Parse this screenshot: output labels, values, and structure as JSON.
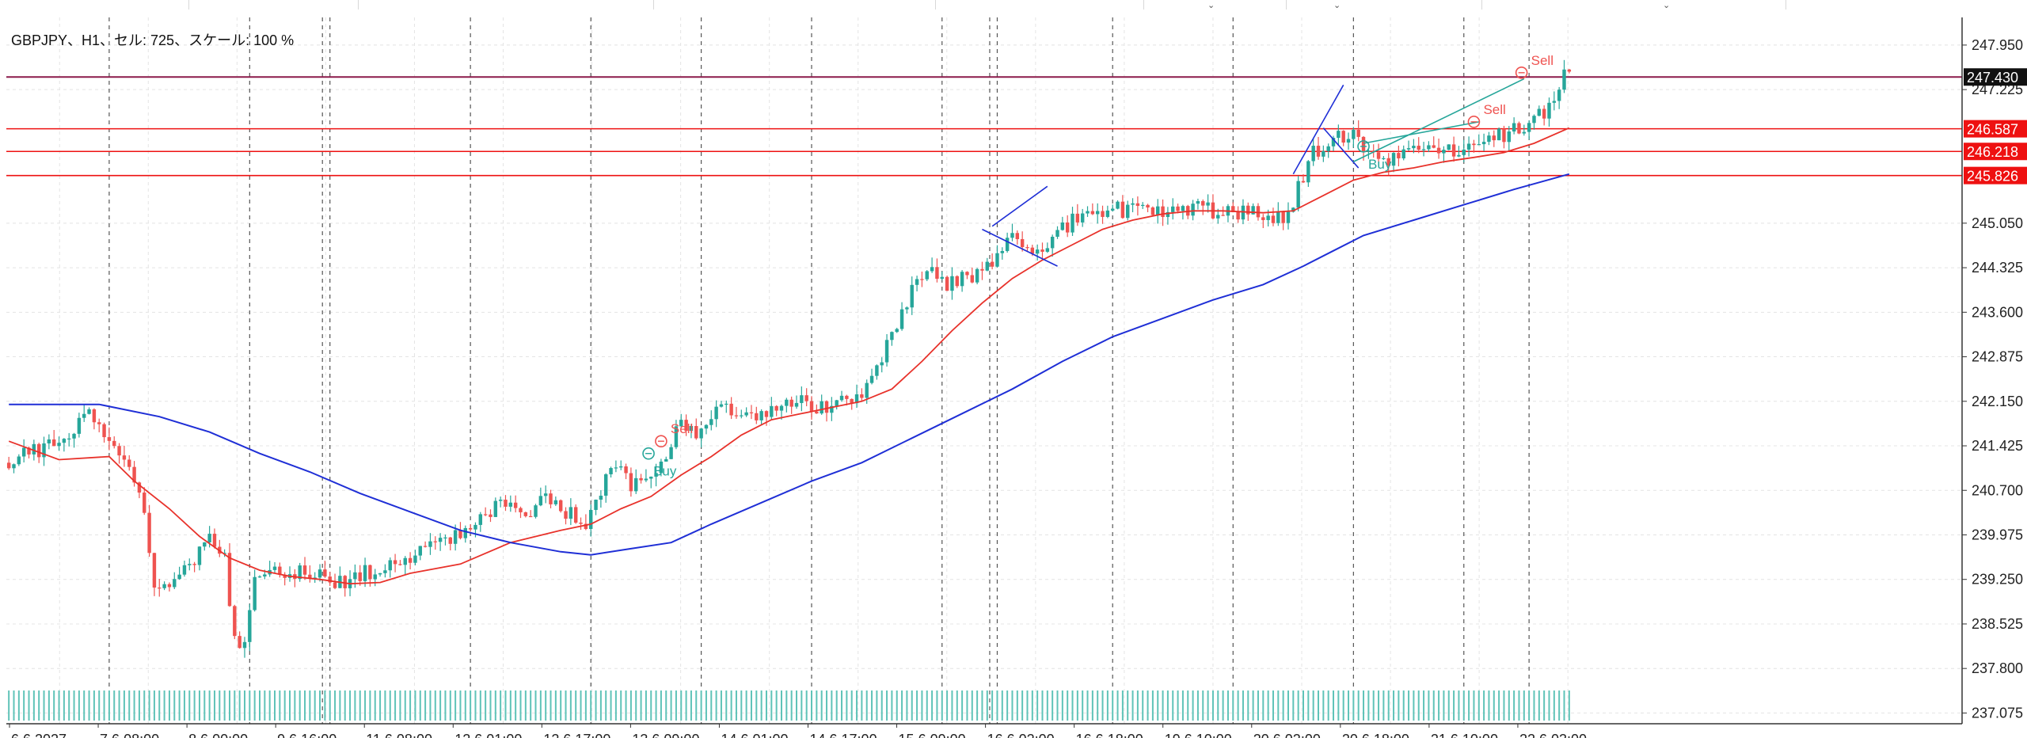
{
  "header": {
    "label": "GBPJPY、H1、セル: 725、スケール: 100 %"
  },
  "colors": {
    "bull": "#26a69a",
    "bear": "#ef5350",
    "ma_fast": "#e8322b",
    "ma_slow": "#1f2fd6",
    "ask_line": "#8b1a4a",
    "level_line": "#ee1111",
    "trend_line": "#1f2fd6",
    "channel_line": "#26a69a",
    "grid": "#e4e4e4",
    "separator": "#555555"
  },
  "chart_data": {
    "type": "candlestick",
    "symbol": "GBPJPY",
    "timeframe": "H1",
    "ylim": [
      236.9,
      248.4
    ],
    "y_ticks": [
      "247.950",
      "247.225",
      "245.050",
      "244.325",
      "243.600",
      "242.875",
      "242.150",
      "241.425",
      "240.700",
      "239.975",
      "239.250",
      "238.525",
      "237.800",
      "237.075"
    ],
    "x_ticks": [
      "6.6 2027",
      "7.6 08:00",
      "8.6 00:00",
      "9.6 16:00",
      "11.6 08:00",
      "12.6 01:00",
      "12.6 17:00",
      "13.6 09:00",
      "14.6 01:00",
      "14.6 17:00",
      "15.6 09:00",
      "16.6 02:00",
      "16.6 18:00",
      "19.6 10:00",
      "20.6 02:00",
      "20.6 18:00",
      "21.6 10:00",
      "22.6 03:00"
    ],
    "day_separators_hours": [
      20,
      48,
      62.5,
      64,
      92,
      116,
      138,
      160,
      186,
      195.5,
      197,
      220,
      244,
      268,
      290,
      303
    ],
    "price_levels": [
      {
        "price": 247.43,
        "label": "247.430",
        "kind": "current"
      },
      {
        "price": 246.587,
        "label": "246.587",
        "kind": "level"
      },
      {
        "price": 246.218,
        "label": "246.218",
        "kind": "level"
      },
      {
        "price": 245.826,
        "label": "245.826",
        "kind": "level"
      }
    ],
    "candles_summary": {
      "bars": 312,
      "x_unit": "hours since first visible bar",
      "path": [
        [
          0,
          241.15
        ],
        [
          10,
          241.45
        ],
        [
          15,
          241.75
        ],
        [
          17,
          242.0
        ],
        [
          20,
          241.65
        ],
        [
          24,
          241.2
        ],
        [
          27,
          240.7
        ],
        [
          30,
          239.2
        ],
        [
          35,
          239.3
        ],
        [
          38,
          239.6
        ],
        [
          41,
          239.95
        ],
        [
          44,
          239.6
        ],
        [
          46,
          238.3
        ],
        [
          48,
          238.1
        ],
        [
          50,
          239.2
        ],
        [
          53,
          239.45
        ],
        [
          56,
          239.4
        ],
        [
          62,
          239.35
        ],
        [
          64,
          239.25
        ],
        [
          68,
          239.15
        ],
        [
          72,
          239.35
        ],
        [
          78,
          239.6
        ],
        [
          84,
          239.7
        ],
        [
          90,
          239.95
        ],
        [
          96,
          240.35
        ],
        [
          100,
          240.5
        ],
        [
          104,
          240.35
        ],
        [
          108,
          240.55
        ],
        [
          113,
          240.3
        ],
        [
          116,
          240.15
        ],
        [
          119,
          240.7
        ],
        [
          122,
          241.2
        ],
        [
          125,
          240.75
        ],
        [
          128,
          240.9
        ],
        [
          132,
          241.3
        ],
        [
          135,
          241.85
        ],
        [
          138,
          241.65
        ],
        [
          141,
          241.95
        ],
        [
          145,
          242.0
        ],
        [
          152,
          241.95
        ],
        [
          158,
          242.15
        ],
        [
          163,
          242.05
        ],
        [
          168,
          242.2
        ],
        [
          172,
          242.35
        ],
        [
          176,
          243.1
        ],
        [
          180,
          243.8
        ],
        [
          184,
          244.3
        ],
        [
          188,
          244.05
        ],
        [
          193,
          244.2
        ],
        [
          198,
          244.55
        ],
        [
          202,
          244.85
        ],
        [
          206,
          244.55
        ],
        [
          210,
          244.9
        ],
        [
          214,
          245.15
        ],
        [
          220,
          245.25
        ],
        [
          226,
          245.3
        ],
        [
          232,
          245.2
        ],
        [
          238,
          245.3
        ],
        [
          244,
          245.2
        ],
        [
          250,
          245.2
        ],
        [
          256,
          245.15
        ],
        [
          258,
          245.65
        ],
        [
          261,
          246.2
        ],
        [
          264,
          246.35
        ],
        [
          267,
          246.5
        ],
        [
          270,
          246.45
        ],
        [
          273,
          246.15
        ],
        [
          276,
          246.05
        ],
        [
          279,
          246.2
        ],
        [
          283,
          246.3
        ],
        [
          288,
          246.2
        ],
        [
          293,
          246.3
        ],
        [
          298,
          246.45
        ],
        [
          303,
          246.65
        ],
        [
          306,
          246.8
        ],
        [
          309,
          247.05
        ],
        [
          311,
          247.43
        ]
      ]
    },
    "moving_averages": [
      {
        "name": "",
        "color": "#e8322b",
        "points": [
          [
            0,
            241.5
          ],
          [
            10,
            241.2
          ],
          [
            20,
            241.25
          ],
          [
            25,
            240.85
          ],
          [
            32,
            240.4
          ],
          [
            38,
            239.95
          ],
          [
            44,
            239.6
          ],
          [
            50,
            239.4
          ],
          [
            56,
            239.3
          ],
          [
            62,
            239.25
          ],
          [
            68,
            239.18
          ],
          [
            74,
            239.2
          ],
          [
            80,
            239.35
          ],
          [
            90,
            239.5
          ],
          [
            100,
            239.85
          ],
          [
            110,
            240.05
          ],
          [
            116,
            240.15
          ],
          [
            122,
            240.4
          ],
          [
            128,
            240.6
          ],
          [
            134,
            240.95
          ],
          [
            140,
            241.25
          ],
          [
            146,
            241.6
          ],
          [
            152,
            241.85
          ],
          [
            158,
            241.95
          ],
          [
            164,
            242.05
          ],
          [
            170,
            242.15
          ],
          [
            176,
            242.35
          ],
          [
            182,
            242.8
          ],
          [
            188,
            243.3
          ],
          [
            194,
            243.75
          ],
          [
            200,
            244.15
          ],
          [
            206,
            244.45
          ],
          [
            212,
            244.7
          ],
          [
            218,
            244.95
          ],
          [
            224,
            245.1
          ],
          [
            230,
            245.2
          ],
          [
            236,
            245.25
          ],
          [
            242,
            245.25
          ],
          [
            250,
            245.22
          ],
          [
            256,
            245.25
          ],
          [
            262,
            245.5
          ],
          [
            268,
            245.75
          ],
          [
            274,
            245.88
          ],
          [
            280,
            245.95
          ],
          [
            286,
            246.05
          ],
          [
            292,
            246.12
          ],
          [
            298,
            246.2
          ],
          [
            304,
            246.35
          ],
          [
            311,
            246.6
          ]
        ]
      },
      {
        "name": "",
        "color": "#1f2fd6",
        "points": [
          [
            0,
            242.1
          ],
          [
            18,
            242.1
          ],
          [
            30,
            241.9
          ],
          [
            40,
            241.65
          ],
          [
            50,
            241.3
          ],
          [
            60,
            241.0
          ],
          [
            70,
            240.65
          ],
          [
            80,
            240.35
          ],
          [
            90,
            240.05
          ],
          [
            100,
            239.85
          ],
          [
            110,
            239.7
          ],
          [
            116,
            239.65
          ],
          [
            124,
            239.75
          ],
          [
            132,
            239.85
          ],
          [
            140,
            240.15
          ],
          [
            150,
            240.5
          ],
          [
            160,
            240.85
          ],
          [
            170,
            241.15
          ],
          [
            180,
            241.55
          ],
          [
            190,
            241.95
          ],
          [
            200,
            242.35
          ],
          [
            210,
            242.8
          ],
          [
            220,
            243.2
          ],
          [
            230,
            243.5
          ],
          [
            240,
            243.8
          ],
          [
            250,
            244.05
          ],
          [
            258,
            244.35
          ],
          [
            264,
            244.6
          ],
          [
            270,
            244.85
          ],
          [
            280,
            245.1
          ],
          [
            290,
            245.35
          ],
          [
            300,
            245.6
          ],
          [
            311,
            245.85
          ]
        ]
      }
    ],
    "trend_lines": [
      {
        "color": "#1f2fd6",
        "from": [
          196,
          245.0
        ],
        "to": [
          207,
          245.65
        ]
      },
      {
        "color": "#1f2fd6",
        "from": [
          194,
          244.95
        ],
        "to": [
          209,
          244.35
        ]
      },
      {
        "color": "#1f2fd6",
        "from": [
          256,
          245.85
        ],
        "to": [
          266,
          247.3
        ]
      },
      {
        "color": "#1f2fd6",
        "from": [
          262,
          246.6
        ],
        "to": [
          269,
          245.95
        ]
      },
      {
        "color": "#26a69a",
        "from": [
          268,
          246.05
        ],
        "to": [
          302,
          247.4
        ]
      },
      {
        "color": "#26a69a",
        "from": [
          270,
          246.35
        ],
        "to": [
          293,
          246.7
        ]
      }
    ],
    "trades": [
      {
        "label": "Buy",
        "side": "buy",
        "hour": 127.5,
        "price": 241.3
      },
      {
        "label": "Sell",
        "side": "sell",
        "hour": 130.0,
        "price": 241.5
      },
      {
        "label": "Buy",
        "side": "buy",
        "hour": 270.0,
        "price": 246.3
      },
      {
        "label": "Sell",
        "side": "sell",
        "hour": 292.0,
        "price": 246.7
      },
      {
        "label": "Sell",
        "side": "sell",
        "hour": 301.5,
        "price": 247.5
      }
    ],
    "grid": true,
    "volume_strip": true
  }
}
